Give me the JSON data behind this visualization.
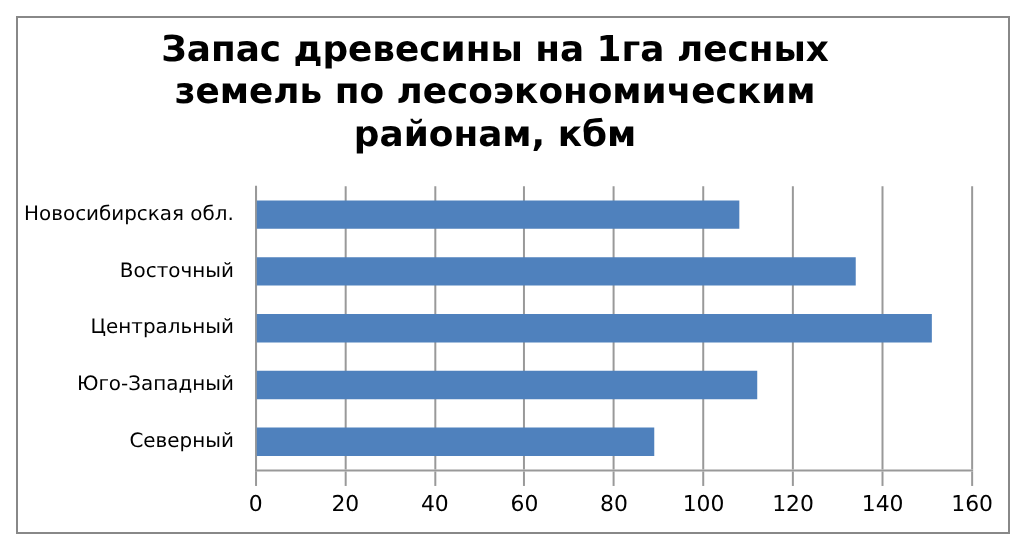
{
  "chart_data": {
    "type": "bar",
    "orientation": "horizontal",
    "title": "Запас древесины на 1га лесных земель по лесоэкономическим районам, кбм",
    "categories": [
      "Новосибирская обл.",
      "Восточный",
      "Центральный",
      "Юго-Западный",
      "Северный"
    ],
    "values": [
      108,
      134,
      151,
      112,
      89
    ],
    "color": "#4f81bd",
    "xlim": [
      0,
      160
    ],
    "xticks": [
      0,
      20,
      40,
      60,
      80,
      100,
      120,
      140,
      160
    ],
    "grid": "x",
    "legend": false
  }
}
